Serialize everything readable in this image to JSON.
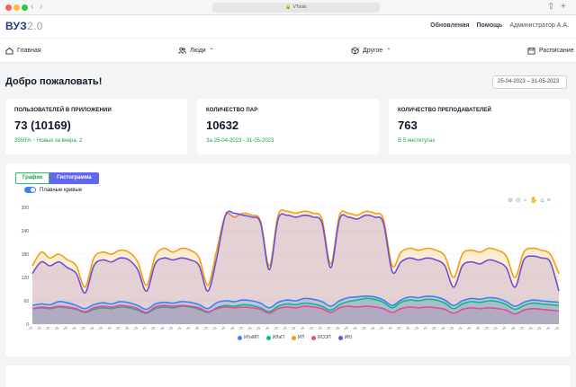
{
  "browser": {
    "url": "VTools"
  },
  "header": {
    "logo": "ВУЗ",
    "logo_version": "2.0",
    "links": [
      "Обновления",
      "Помощь"
    ],
    "user": "Администратор А.А."
  },
  "menu": {
    "home": "Главная",
    "people": "Люди",
    "other": "Другое",
    "schedule": "Расписание"
  },
  "page": {
    "title": "Добро пожаловать!",
    "date_range": "25-04-2023 – 31-05-2023"
  },
  "cards": {
    "users": {
      "title": "ПОЛЬЗОВАТЕЛЕЙ В ПРИЛОЖЕНИИ",
      "value": "73 (10169)",
      "delta": "3550%",
      "delta_note": "Новых за вчера: 2"
    },
    "pairs": {
      "title": "КОЛИЧЕСТВО ПАР",
      "value": "10632",
      "note": "За 25-04-2023 - 31-05-2023"
    },
    "teachers": {
      "title": "КОЛИЧЕСТВО ПРЕПОДАВАТЕЛЕЙ",
      "value": "763",
      "note": "В 5 институтах"
    }
  },
  "chart_panel": {
    "tab_graph": "График",
    "tab_histogram": "Гистограмма",
    "smooth_label": "Плавные кривые"
  },
  "chart_data": {
    "type": "area",
    "ylim": [
      0,
      300
    ],
    "yticks": [
      0,
      60,
      120,
      180,
      240,
      300
    ],
    "categories": [
      "01.04.2023",
      "02.04.2023",
      "03.04.2023",
      "04.04.2023",
      "05.04.2023",
      "06.04.2023",
      "07.04.2023",
      "08.04.2023",
      "09.04.2023",
      "10.04.2023",
      "11.04.2023",
      "12.04.2023",
      "13.04.2023",
      "14.04.2023",
      "15.04.2023",
      "16.04.2023",
      "17.04.2023",
      "18.04.2023",
      "19.04.2023",
      "20.04.2023",
      "21.04.2023",
      "22.04.2023",
      "23.04.2023",
      "24.04.2023",
      "25.04.2023",
      "26.04.2023",
      "27.04.2023",
      "28.04.2023",
      "29.04.2023",
      "30.04.2023",
      "01.05.2023",
      "02.05.2023",
      "03.05.2023",
      "04.05.2023",
      "05.05.2023",
      "06.05.2023",
      "07.05.2023",
      "08.05.2023",
      "09.05.2023",
      "10.05.2023",
      "11.05.2023",
      "12.05.2023",
      "13.05.2023",
      "14.05.2023",
      "15.05.2023",
      "16.05.2023",
      "17.05.2023",
      "18.05.2023",
      "19.05.2023",
      "20.05.2023",
      "21.05.2023",
      "22.05.2023",
      "23.05.2023",
      "24.05.2023",
      "25.05.2023",
      "26.05.2023",
      "27.05.2023",
      "28.05.2023",
      "29.05.2023",
      "30.05.2023",
      "31.05.2023"
    ],
    "series": [
      {
        "name": "ИГиМП",
        "color": "#3b82f6",
        "values": [
          48,
          52,
          50,
          58,
          55,
          48,
          40,
          50,
          55,
          52,
          58,
          55,
          48,
          38,
          52,
          56,
          54,
          58,
          56,
          50,
          40,
          55,
          60,
          58,
          62,
          60,
          54,
          42,
          56,
          62,
          60,
          66,
          64,
          58,
          46,
          60,
          68,
          70,
          72,
          70,
          62,
          48,
          62,
          70,
          68,
          72,
          70,
          62,
          48,
          60,
          66,
          64,
          68,
          66,
          58,
          46,
          56,
          62,
          60,
          58,
          56
        ]
      },
      {
        "name": "ИЛиП",
        "color": "#10b981",
        "values": [
          40,
          42,
          40,
          44,
          42,
          38,
          30,
          38,
          42,
          40,
          44,
          42,
          36,
          28,
          40,
          44,
          42,
          46,
          44,
          38,
          30,
          42,
          48,
          46,
          50,
          48,
          42,
          32,
          46,
          52,
          50,
          54,
          52,
          46,
          36,
          50,
          58,
          62,
          66,
          64,
          56,
          42,
          56,
          62,
          60,
          64,
          62,
          54,
          40,
          52,
          58,
          56,
          60,
          58,
          50,
          38,
          48,
          54,
          52,
          50,
          48
        ]
      },
      {
        "name": "ИП",
        "color": "#f59e0b",
        "values": [
          150,
          185,
          170,
          180,
          165,
          150,
          95,
          170,
          185,
          180,
          190,
          185,
          160,
          100,
          175,
          195,
          185,
          195,
          190,
          170,
          100,
          190,
          280,
          275,
          285,
          280,
          265,
          150,
          280,
          290,
          285,
          290,
          285,
          270,
          155,
          280,
          285,
          280,
          290,
          285,
          270,
          150,
          185,
          195,
          190,
          195,
          190,
          175,
          120,
          180,
          190,
          185,
          195,
          190,
          175,
          120,
          185,
          195,
          190,
          180,
          130
        ]
      },
      {
        "name": "ИСОП",
        "color": "#ec4899",
        "values": [
          40,
          44,
          42,
          46,
          44,
          40,
          32,
          42,
          46,
          44,
          48,
          46,
          40,
          30,
          44,
          48,
          46,
          48,
          46,
          42,
          32,
          40,
          44,
          42,
          44,
          42,
          38,
          28,
          40,
          44,
          42,
          46,
          44,
          40,
          30,
          42,
          46,
          44,
          46,
          44,
          40,
          30,
          40,
          44,
          42,
          44,
          42,
          38,
          28,
          38,
          42,
          40,
          42,
          40,
          36,
          26,
          36,
          40,
          38,
          36,
          34
        ]
      },
      {
        "name": "ИЮ",
        "color": "#6d4fd8",
        "values": [
          130,
          160,
          150,
          160,
          145,
          130,
          80,
          150,
          165,
          160,
          170,
          165,
          140,
          85,
          155,
          170,
          165,
          170,
          165,
          150,
          85,
          170,
          280,
          285,
          280,
          275,
          260,
          140,
          270,
          280,
          275,
          280,
          275,
          260,
          145,
          270,
          275,
          270,
          280,
          275,
          260,
          135,
          160,
          170,
          165,
          170,
          165,
          150,
          95,
          150,
          160,
          155,
          165,
          160,
          145,
          95,
          165,
          175,
          170,
          160,
          85
        ]
      }
    ]
  }
}
